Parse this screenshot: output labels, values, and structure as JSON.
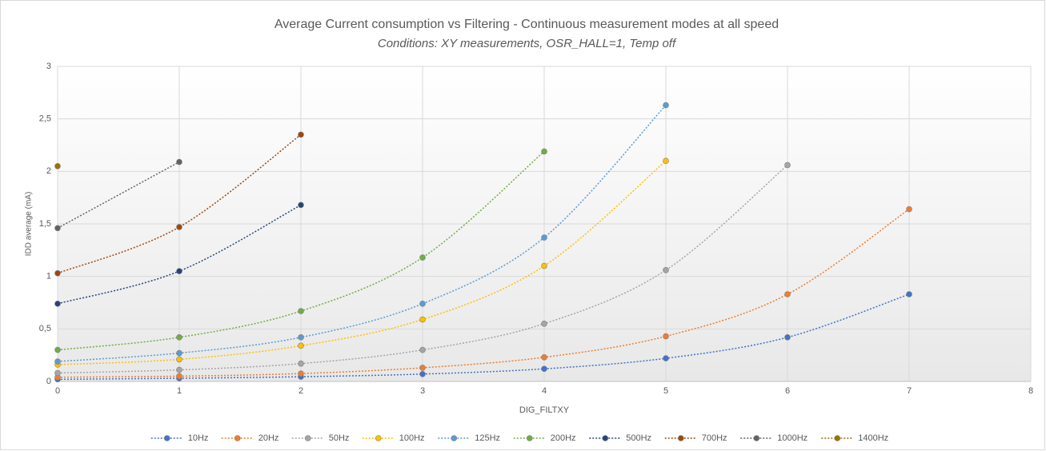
{
  "chart_data": {
    "type": "line",
    "title": "Average Current consumption vs Filtering - Continuous measurement modes at all speed",
    "subtitle": "Conditions: XY measurements,  OSR_HALL=1, Temp off",
    "x_label": "DIG_FILTXY",
    "y_label": "IDD average (mA)",
    "x": [
      0,
      1,
      2,
      3,
      4,
      5,
      6,
      7
    ],
    "series": [
      {
        "name": "10Hz",
        "color": "#4472c4",
        "values": [
          0.02,
          0.03,
          0.045,
          0.07,
          0.12,
          0.22,
          0.42,
          0.83
        ]
      },
      {
        "name": "20Hz",
        "color": "#ed7d31",
        "values": [
          0.04,
          0.05,
          0.075,
          0.13,
          0.23,
          0.43,
          0.83,
          1.64
        ]
      },
      {
        "name": "50Hz",
        "color": "#a5a5a5",
        "values": [
          0.08,
          0.11,
          0.17,
          0.3,
          0.55,
          1.06,
          2.06,
          null
        ]
      },
      {
        "name": "100Hz",
        "color": "#ffc000",
        "values": [
          0.16,
          0.21,
          0.34,
          0.59,
          1.1,
          2.1,
          null,
          null
        ]
      },
      {
        "name": "125Hz",
        "color": "#5b9bd5",
        "values": [
          0.19,
          0.27,
          0.42,
          0.74,
          1.37,
          2.63,
          null,
          null
        ]
      },
      {
        "name": "200Hz",
        "color": "#70ad47",
        "values": [
          0.3,
          0.42,
          0.67,
          1.18,
          2.19,
          null,
          null,
          null
        ]
      },
      {
        "name": "500Hz",
        "color": "#264478",
        "values": [
          0.74,
          1.05,
          1.68,
          null,
          null,
          null,
          null,
          null
        ]
      },
      {
        "name": "700Hz",
        "color": "#9e480e",
        "values": [
          1.03,
          1.47,
          2.35,
          null,
          null,
          null,
          null,
          null
        ]
      },
      {
        "name": "1000Hz",
        "color": "#636363",
        "values": [
          1.46,
          2.09,
          null,
          null,
          null,
          null,
          null,
          null
        ]
      },
      {
        "name": "1400Hz",
        "color": "#997300",
        "values": [
          2.05,
          null,
          null,
          null,
          null,
          null,
          null,
          null
        ]
      }
    ],
    "xlim": [
      0,
      8
    ],
    "xticks": [
      0,
      1,
      2,
      3,
      4,
      5,
      6,
      7,
      8
    ],
    "ylim": [
      0,
      3
    ],
    "yticks": [
      0,
      {
        "value": 0.5,
        "label": "0,5"
      },
      1,
      {
        "value": 1.5,
        "label": "1,5"
      },
      2,
      {
        "value": 2.5,
        "label": "2,5"
      },
      3
    ],
    "grid": true,
    "smooth": true,
    "legend": "bottom"
  }
}
